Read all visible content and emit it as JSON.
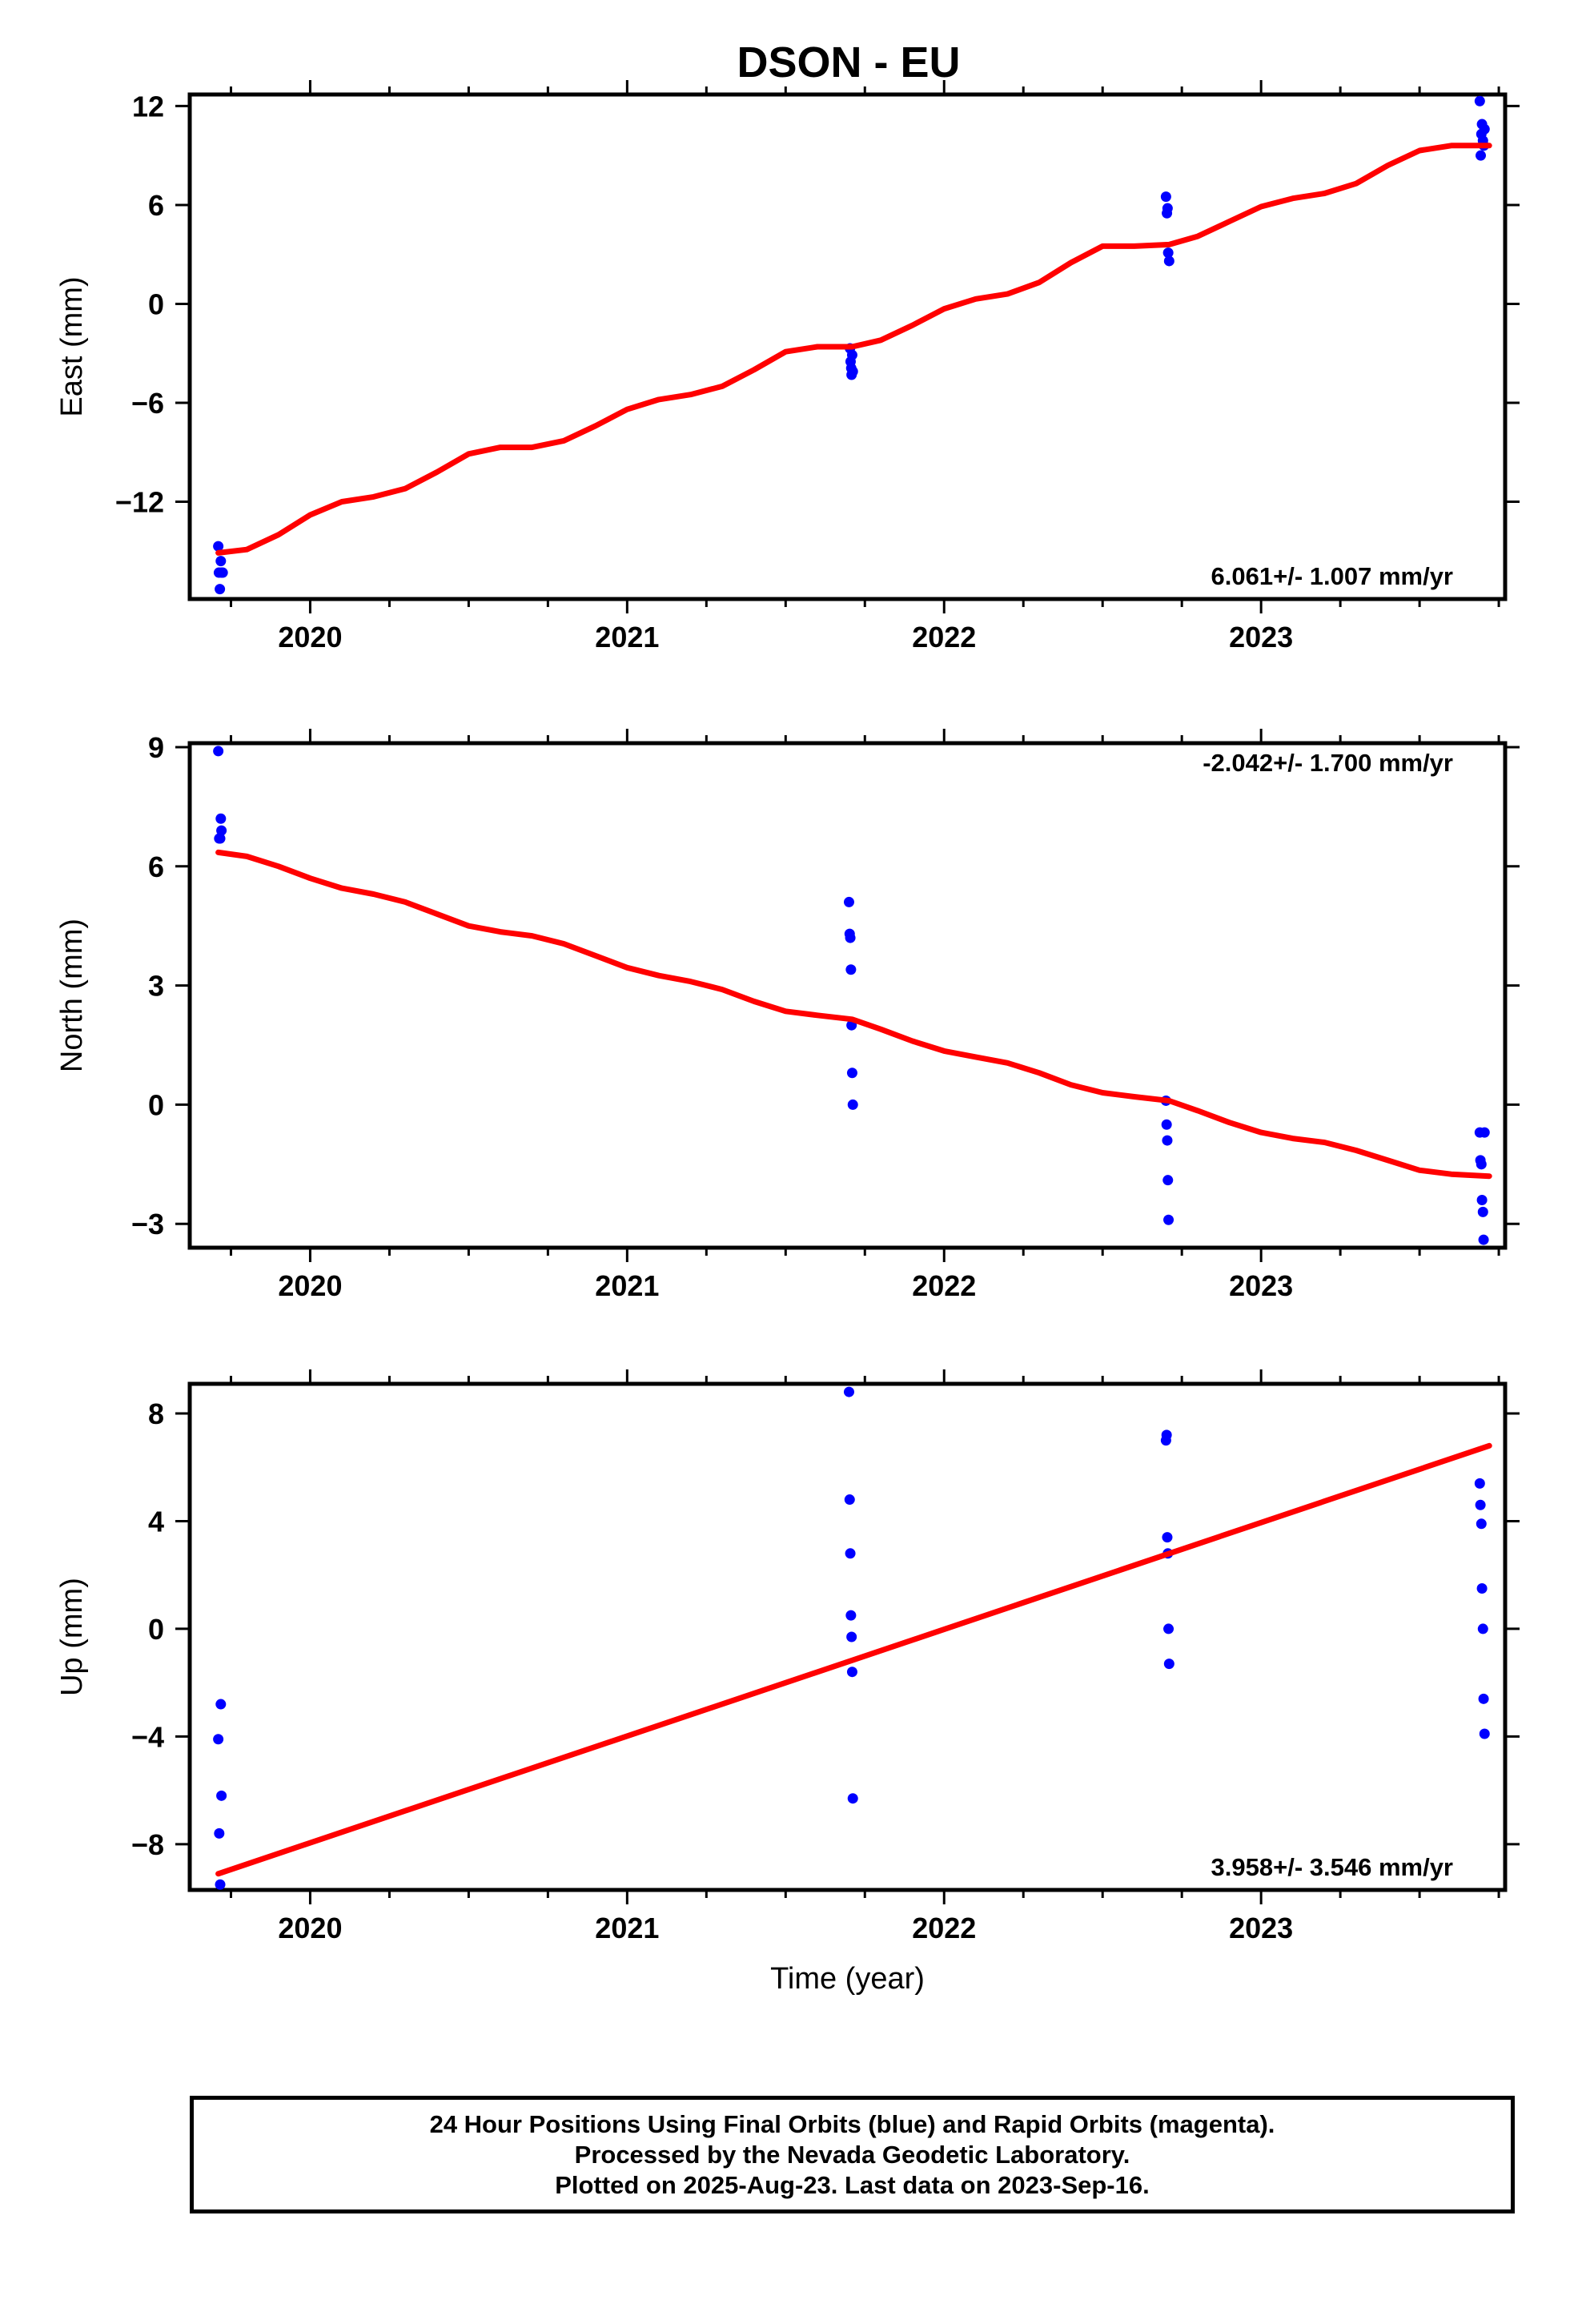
{
  "title": "DSON - EU",
  "colors": {
    "data_points": "#0000ff",
    "trend_line": "#ff0000",
    "frame": "#000000"
  },
  "chart_data": [
    {
      "type": "scatter",
      "ylabel": "East (mm)",
      "xlabel": "",
      "xlim": [
        2019.62,
        2023.77
      ],
      "ylim": [
        -17.9,
        12.7
      ],
      "yticks": [
        12,
        6,
        0,
        -6,
        -12
      ],
      "ytick_labels": [
        "12",
        "6",
        "0",
        "−6",
        "−12"
      ],
      "xticks": [
        2020,
        2021,
        2022,
        2023
      ],
      "xtick_labels": [
        "2020",
        "2021",
        "2022",
        "2023"
      ],
      "rate_label": "6.061+/- 1.007 mm/yr",
      "rate_position": "bottom-right",
      "series": [
        {
          "type": "scatter",
          "x": [
            2019.71,
            2019.712,
            2019.715,
            2019.718,
            2019.72,
            2019.724,
            2021.703,
            2021.705,
            2021.707,
            2021.708,
            2021.71,
            2021.712,
            2022.7,
            2022.703,
            2022.705,
            2022.707,
            2022.71,
            2023.69,
            2023.693,
            2023.695,
            2023.697,
            2023.7,
            2023.703,
            2023.705
          ],
          "y": [
            -14.7,
            -16.3,
            -17.3,
            -15.6,
            -16.3,
            -16.3,
            -2.7,
            -3.5,
            -3.9,
            -4.3,
            -3.1,
            -4.1,
            6.5,
            5.5,
            5.8,
            3.1,
            2.6,
            12.3,
            9.0,
            10.3,
            10.9,
            9.9,
            9.6,
            10.6
          ]
        },
        {
          "type": "line",
          "x": [
            2019.71,
            2019.8,
            2019.9,
            2020.0,
            2020.1,
            2020.2,
            2020.3,
            2020.4,
            2020.5,
            2020.6,
            2020.7,
            2020.8,
            2020.9,
            2021.0,
            2021.1,
            2021.2,
            2021.3,
            2021.4,
            2021.5,
            2021.6,
            2021.71,
            2021.8,
            2021.9,
            2022.0,
            2022.1,
            2022.2,
            2022.3,
            2022.4,
            2022.5,
            2022.6,
            2022.71,
            2022.8,
            2022.9,
            2023.0,
            2023.1,
            2023.2,
            2023.3,
            2023.4,
            2023.5,
            2023.6,
            2023.72
          ],
          "y": [
            -15.1,
            -14.9,
            -14.0,
            -12.8,
            -12.0,
            -11.7,
            -11.2,
            -10.2,
            -9.1,
            -8.7,
            -8.7,
            -8.3,
            -7.4,
            -6.4,
            -5.8,
            -5.5,
            -5.0,
            -4.0,
            -2.9,
            -2.6,
            -2.6,
            -2.2,
            -1.3,
            -0.3,
            0.3,
            0.6,
            1.3,
            2.5,
            3.5,
            3.5,
            3.6,
            4.1,
            5.0,
            5.9,
            6.4,
            6.7,
            7.3,
            8.4,
            9.3,
            9.6,
            9.6
          ]
        }
      ]
    },
    {
      "type": "scatter",
      "ylabel": "North (mm)",
      "xlabel": "",
      "xlim": [
        2019.62,
        2023.77
      ],
      "ylim": [
        -3.6,
        9.1
      ],
      "yticks": [
        9,
        6,
        3,
        0,
        -3
      ],
      "ytick_labels": [
        "9",
        "6",
        "3",
        "0",
        "−3"
      ],
      "xticks": [
        2020,
        2021,
        2022,
        2023
      ],
      "xtick_labels": [
        "2020",
        "2021",
        "2022",
        "2023"
      ],
      "rate_label": "-2.042+/- 1.700 mm/yr",
      "rate_position": "top-right",
      "series": [
        {
          "type": "scatter",
          "x": [
            2019.71,
            2019.713,
            2019.716,
            2019.718,
            2019.72,
            2021.7,
            2021.702,
            2021.704,
            2021.706,
            2021.708,
            2021.71,
            2021.712,
            2022.7,
            2022.702,
            2022.704,
            2022.706,
            2022.708,
            2023.69,
            2023.692,
            2023.695,
            2023.697,
            2023.7,
            2023.702,
            2023.705
          ],
          "y": [
            8.9,
            6.7,
            6.7,
            7.2,
            6.9,
            5.1,
            4.3,
            4.2,
            3.4,
            2.0,
            0.8,
            0.0,
            0.1,
            -0.5,
            -0.9,
            -1.9,
            -2.9,
            -0.7,
            -1.4,
            -1.5,
            -2.4,
            -2.7,
            -3.4,
            -0.7
          ]
        },
        {
          "type": "line",
          "x": [
            2019.71,
            2019.8,
            2019.9,
            2020.0,
            2020.1,
            2020.2,
            2020.3,
            2020.4,
            2020.5,
            2020.6,
            2020.7,
            2020.8,
            2020.9,
            2021.0,
            2021.1,
            2021.2,
            2021.3,
            2021.4,
            2021.5,
            2021.6,
            2021.71,
            2021.8,
            2021.9,
            2022.0,
            2022.1,
            2022.2,
            2022.3,
            2022.4,
            2022.5,
            2022.6,
            2022.71,
            2022.8,
            2022.9,
            2023.0,
            2023.1,
            2023.2,
            2023.3,
            2023.4,
            2023.5,
            2023.6,
            2023.72
          ],
          "y": [
            6.35,
            6.25,
            6.0,
            5.7,
            5.45,
            5.3,
            5.1,
            4.8,
            4.5,
            4.35,
            4.25,
            4.05,
            3.75,
            3.45,
            3.25,
            3.1,
            2.9,
            2.6,
            2.35,
            2.25,
            2.15,
            1.9,
            1.6,
            1.35,
            1.2,
            1.05,
            0.8,
            0.5,
            0.3,
            0.2,
            0.1,
            -0.15,
            -0.45,
            -0.7,
            -0.85,
            -0.95,
            -1.15,
            -1.4,
            -1.65,
            -1.75,
            -1.8
          ]
        }
      ]
    },
    {
      "type": "scatter",
      "ylabel": "Up (mm)",
      "xlabel": "Time (year)",
      "xlim": [
        2019.62,
        2023.77
      ],
      "ylim": [
        -9.7,
        9.1
      ],
      "yticks": [
        8,
        4,
        0,
        -4,
        -8
      ],
      "ytick_labels": [
        "8",
        "4",
        "0",
        "−4",
        "−8"
      ],
      "xticks": [
        2020,
        2021,
        2022,
        2023
      ],
      "xtick_labels": [
        "2020",
        "2021",
        "2022",
        "2023"
      ],
      "rate_label": "3.958+/- 3.546 mm/yr",
      "rate_position": "bottom-right",
      "series": [
        {
          "type": "scatter",
          "x": [
            2019.71,
            2019.713,
            2019.716,
            2019.718,
            2019.72,
            2021.7,
            2021.702,
            2021.704,
            2021.706,
            2021.708,
            2021.71,
            2021.712,
            2022.7,
            2022.702,
            2022.704,
            2022.706,
            2022.708,
            2022.71,
            2023.69,
            2023.692,
            2023.695,
            2023.697,
            2023.7,
            2023.702,
            2023.705
          ],
          "y": [
            -4.1,
            -7.6,
            -9.5,
            -2.8,
            -6.2,
            8.8,
            4.8,
            2.8,
            0.5,
            -0.3,
            -1.6,
            -6.3,
            7.0,
            7.2,
            3.4,
            2.8,
            0.0,
            -1.3,
            5.4,
            4.6,
            3.9,
            1.5,
            0.0,
            -2.6,
            -3.9
          ]
        },
        {
          "type": "line",
          "x": [
            2019.71,
            2023.72
          ],
          "y": [
            -9.1,
            6.8
          ]
        }
      ]
    }
  ],
  "footer": {
    "line1": "24 Hour Positions Using Final Orbits (blue) and Rapid Orbits (magenta).",
    "line2": "Processed by the Nevada Geodetic Laboratory.",
    "line3": "Plotted on 2025-Aug-23. Last data on 2023-Sep-16."
  }
}
